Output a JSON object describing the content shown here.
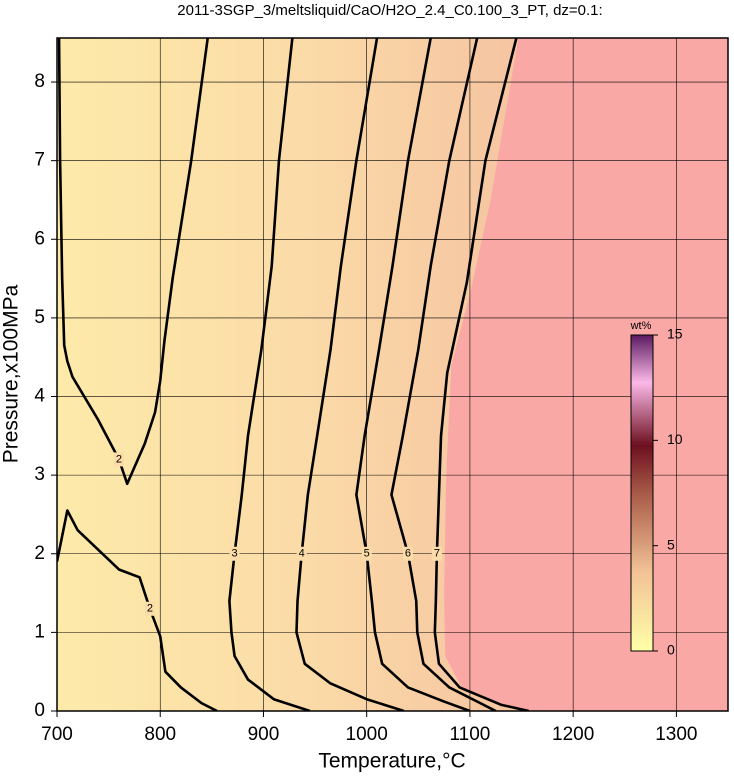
{
  "chart_data": {
    "type": "contour",
    "title": "2011-3SGP_3/meltsliquid/CaO/H2O_2.4_C0.100_3_PT, dz=0.1:",
    "x_label": "Temperature,°C",
    "y_label": "Pressure,x100MPa",
    "xlim": [
      700,
      1350
    ],
    "ylim": [
      0,
      8.56
    ],
    "xticks": [
      700,
      800,
      900,
      1000,
      1100,
      1200,
      1300
    ],
    "yticks": [
      0,
      1,
      2,
      3,
      4,
      5,
      6,
      7,
      8
    ],
    "grid": true,
    "line_color": "#000000",
    "saturated_region": {
      "color": "#f9a8a5",
      "x": [
        1147,
        1120,
        1100,
        1082,
        1077,
        1075,
        1076,
        1092,
        1130,
        1165,
        1350,
        1350
      ],
      "y": [
        8.56,
        6.5,
        5.3,
        4.4,
        3,
        1.5,
        0.7,
        0.3,
        0.08,
        0,
        0,
        8.56
      ]
    },
    "contours": [
      {
        "level": 2,
        "x": [
          846,
          830,
          812,
          804,
          800,
          795,
          785,
          768,
          760,
          740,
          715,
          710,
          707,
          705,
          703,
          702
        ],
        "y": [
          8.56,
          7,
          5.5,
          4.7,
          4.2,
          3.8,
          3.4,
          2.89,
          3.2,
          3.7,
          4.25,
          4.45,
          4.65,
          5.5,
          7,
          8.56
        ]
      },
      {
        "level": 2,
        "x": [
          700,
          710,
          720,
          740,
          760,
          780,
          790,
          800,
          805,
          820,
          840,
          855
        ],
        "y": [
          1.9,
          2.55,
          2.3,
          2.05,
          1.8,
          1.7,
          1.3,
          0.95,
          0.5,
          0.3,
          0.1,
          0
        ]
      },
      {
        "level": 3,
        "x": [
          928,
          915,
          908,
          898,
          885,
          879,
          872,
          867,
          869,
          872,
          885,
          910,
          945
        ],
        "y": [
          8.56,
          7,
          5.66,
          4.6,
          3.5,
          2.75,
          2,
          1.4,
          1.0,
          0.7,
          0.4,
          0.15,
          0
        ]
      },
      {
        "level": 4,
        "x": [
          1010,
          990,
          975,
          965,
          952,
          943,
          937,
          933,
          932,
          940,
          965,
          1000,
          1036
        ],
        "y": [
          8.56,
          7,
          5.66,
          4.6,
          3.5,
          2.75,
          2,
          1.4,
          1.0,
          0.6,
          0.35,
          0.15,
          0
        ]
      },
      {
        "level": 5,
        "x": [
          1062,
          1040,
          1025,
          1012,
          998,
          990,
          1000,
          1005,
          1008,
          1015,
          1040,
          1075,
          1100
        ],
        "y": [
          8.56,
          7,
          5.66,
          4.6,
          3.5,
          2.75,
          2,
          1.4,
          1.0,
          0.6,
          0.3,
          0.12,
          0
        ]
      },
      {
        "level": 6,
        "x": [
          1107,
          1080,
          1062,
          1050,
          1035,
          1024,
          1040,
          1048,
          1049,
          1055,
          1080,
          1110,
          1125
        ],
        "y": [
          8.56,
          7,
          5.66,
          4.6,
          3.5,
          2.75,
          2,
          1.4,
          1.0,
          0.6,
          0.3,
          0.1,
          0
        ]
      },
      {
        "level": 7,
        "x": [
          1145,
          1115,
          1097,
          1078,
          1072,
          1070,
          1068,
          1067,
          1066,
          1070,
          1090,
          1130,
          1157
        ],
        "y": [
          8.56,
          7,
          5.45,
          4.3,
          3.5,
          2.75,
          2,
          1.4,
          1.0,
          0.6,
          0.3,
          0.08,
          0
        ]
      }
    ],
    "colorbar": {
      "label": "wt%",
      "lim": [
        0,
        15
      ],
      "ticks": [
        0,
        5,
        10,
        15
      ]
    }
  }
}
